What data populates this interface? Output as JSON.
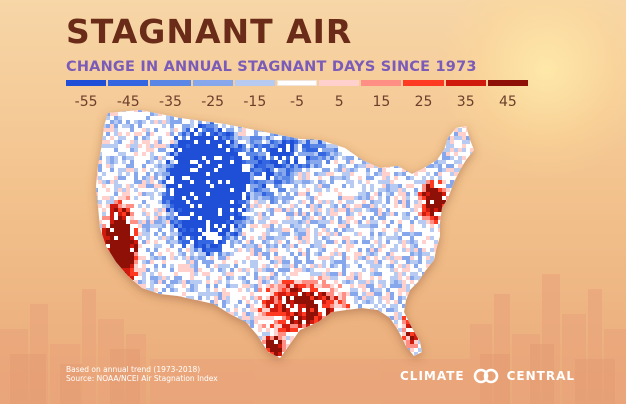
{
  "title": "STAGNANT AIR",
  "subtitle": "CHANGE IN ANNUAL STAGNANT DAYS SINCE 1973",
  "legend": {
    "ticks": [
      "-55",
      "-45",
      "-35",
      "-25",
      "-15",
      "-5",
      "5",
      "15",
      "25",
      "35",
      "45"
    ],
    "colors": [
      "#1f4fd6",
      "#3366e0",
      "#5a86e6",
      "#86a7ec",
      "#b7cbf2",
      "#ffffff",
      "#ffd0cc",
      "#ff8f84",
      "#ff3a22",
      "#d11a0e",
      "#8e1006"
    ]
  },
  "map": {
    "region": "Contiguous United States",
    "pattern_note_colors": {
      "decrease_strong": "#1f4fd6",
      "decrease_light": "#b7cbf2",
      "increase_light": "#ffb9b2",
      "increase_strong": "#ff2a12"
    }
  },
  "footnote": {
    "line1": "Based on annual trend (1973-2018)",
    "line2": "Source: NOAA/NCEI Air Stagnation Index"
  },
  "brand": {
    "left": "CLIMATE",
    "right": "CENTRAL",
    "logo": "climate-central-logo"
  }
}
